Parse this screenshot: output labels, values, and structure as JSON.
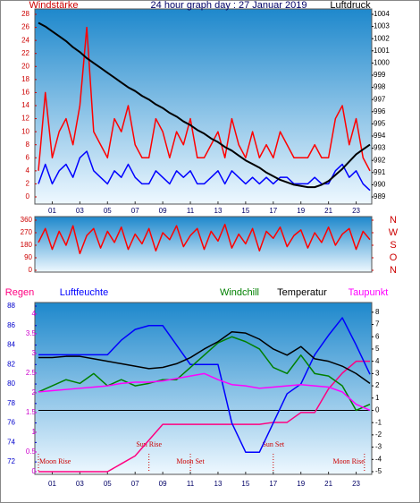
{
  "chart_data": [
    {
      "type": "line",
      "title": "24 hour graph day : 27 Januar 2019",
      "ylabel": "Windstärke",
      "y2label": "Luftdruck",
      "xlim": [
        0,
        24
      ],
      "xticks": [
        {
          "value": 1,
          "label": "01"
        },
        {
          "value": 3,
          "label": "03"
        },
        {
          "value": 5,
          "label": "05"
        },
        {
          "value": 7,
          "label": "07"
        },
        {
          "value": 9,
          "label": "09"
        },
        {
          "value": 11,
          "label": "11"
        },
        {
          "value": 13,
          "label": "13"
        },
        {
          "value": 15,
          "label": "15"
        },
        {
          "value": 17,
          "label": "17"
        },
        {
          "value": 19,
          "label": "19"
        },
        {
          "value": 21,
          "label": "21"
        },
        {
          "value": 23,
          "label": "23"
        }
      ],
      "ylim": [
        0,
        28
      ],
      "yticks": [
        0,
        2,
        4,
        6,
        8,
        10,
        12,
        14,
        16,
        18,
        20,
        22,
        24,
        26,
        28
      ],
      "y2lim": [
        989,
        1004
      ],
      "y2ticks": [
        989,
        990,
        991,
        992,
        993,
        994,
        995,
        996,
        997,
        998,
        999,
        1000,
        1001,
        1002,
        1003,
        1004
      ],
      "x": [
        0,
        0.5,
        1,
        1.5,
        2,
        2.5,
        3,
        3.5,
        4,
        4.5,
        5,
        5.5,
        6,
        6.5,
        7,
        7.5,
        8,
        8.5,
        9,
        9.5,
        10,
        10.5,
        11,
        11.5,
        12,
        12.5,
        13,
        13.5,
        14,
        14.5,
        15,
        15.5,
        16,
        16.5,
        17,
        17.5,
        18,
        18.5,
        19,
        19.5,
        20,
        20.5,
        21,
        21.5,
        22,
        22.5,
        23,
        23.5,
        24
      ],
      "series": [
        {
          "color": "#ff0000",
          "axis": "y",
          "values": [
            4,
            16,
            6,
            10,
            12,
            8,
            14,
            26,
            10,
            8,
            6,
            12,
            10,
            14,
            8,
            6,
            6,
            12,
            10,
            6,
            10,
            8,
            12,
            6,
            6,
            8,
            10,
            6,
            12,
            8,
            6,
            10,
            6,
            8,
            6,
            10,
            8,
            6,
            6,
            6,
            8,
            6,
            6,
            12,
            14,
            8,
            12,
            6,
            4
          ]
        },
        {
          "color": "#0000ff",
          "axis": "y",
          "values": [
            2,
            5,
            2,
            4,
            5,
            3,
            6,
            7,
            4,
            3,
            2,
            4,
            3,
            5,
            3,
            2,
            2,
            4,
            3,
            2,
            4,
            3,
            4,
            2,
            2,
            3,
            4,
            2,
            4,
            3,
            2,
            3,
            2,
            3,
            2,
            3,
            3,
            2,
            2,
            2,
            3,
            2,
            2,
            4,
            5,
            3,
            4,
            2,
            1
          ]
        },
        {
          "color": "#000000",
          "axis": "y2",
          "values": [
            1003.3,
            1003,
            1002.6,
            1002.2,
            1001.8,
            1001.3,
            1000.9,
            1000.4,
            1000,
            999.6,
            999.2,
            998.8,
            998.4,
            998,
            997.7,
            997.3,
            997,
            996.6,
            996.3,
            995.9,
            995.6,
            995.2,
            994.9,
            994.5,
            994.2,
            993.8,
            993.5,
            993.1,
            992.8,
            992.4,
            992,
            991.7,
            991.4,
            991,
            990.7,
            990.4,
            990.2,
            990,
            989.9,
            989.8,
            989.8,
            990,
            990.3,
            990.8,
            991.3,
            991.9,
            992.5,
            992.9,
            993.3
          ]
        }
      ]
    },
    {
      "type": "line",
      "xlim": [
        0,
        24
      ],
      "ylim": [
        0,
        360
      ],
      "yticks": [
        0,
        90,
        180,
        270,
        360
      ],
      "y2lim": [
        0,
        360
      ],
      "y2ticks": [
        {
          "value": 360,
          "label": "N"
        },
        {
          "value": 270,
          "label": "W"
        },
        {
          "value": 180,
          "label": "S"
        },
        {
          "value": 90,
          "label": "O"
        },
        {
          "value": 0,
          "label": "N"
        }
      ],
      "x": [
        0,
        0.5,
        1,
        1.5,
        2,
        2.5,
        3,
        3.5,
        4,
        4.5,
        5,
        5.5,
        6,
        6.5,
        7,
        7.5,
        8,
        8.5,
        9,
        9.5,
        10,
        10.5,
        11,
        11.5,
        12,
        12.5,
        13,
        13.5,
        14,
        14.5,
        15,
        15.5,
        16,
        16.5,
        17,
        17.5,
        18,
        18.5,
        19,
        19.5,
        20,
        20.5,
        21,
        21.5,
        22,
        22.5,
        23,
        23.5,
        24
      ],
      "series": [
        {
          "color": "#ff0000",
          "axis": "y",
          "values": [
            200,
            300,
            150,
            280,
            180,
            320,
            120,
            250,
            300,
            160,
            280,
            200,
            310,
            150,
            260,
            190,
            300,
            140,
            270,
            220,
            320,
            170,
            250,
            300,
            150,
            280,
            210,
            330,
            160,
            260,
            190,
            300,
            140,
            280,
            230,
            310,
            170,
            250,
            290,
            160,
            270,
            200,
            310,
            180,
            260,
            300,
            150,
            280,
            220
          ]
        }
      ]
    },
    {
      "type": "line",
      "xlim": [
        0,
        24
      ],
      "xticks": [
        {
          "value": 1,
          "label": "01"
        },
        {
          "value": 3,
          "label": "03"
        },
        {
          "value": 5,
          "label": "05"
        },
        {
          "value": 7,
          "label": "07"
        },
        {
          "value": 9,
          "label": "09"
        },
        {
          "value": 11,
          "label": "11"
        },
        {
          "value": 13,
          "label": "13"
        },
        {
          "value": 15,
          "label": "15"
        },
        {
          "value": 17,
          "label": "17"
        },
        {
          "value": 19,
          "label": "19"
        },
        {
          "value": 21,
          "label": "21"
        },
        {
          "value": 23,
          "label": "23"
        }
      ],
      "ylim": [
        0,
        4.2
      ],
      "yticks": [
        0,
        0.5,
        1,
        1.5,
        2,
        2.5,
        3,
        3.5,
        4
      ],
      "y3lim": [
        71,
        88
      ],
      "y3ticks": [
        72,
        74,
        76,
        78,
        80,
        82,
        84,
        86,
        88
      ],
      "y2lim": [
        -5,
        8.5
      ],
      "y2ticks": [
        -5,
        -4,
        -3,
        -2,
        -1,
        0,
        1,
        2,
        3,
        4,
        5,
        6,
        7,
        8
      ],
      "x": [
        0,
        1,
        2,
        3,
        4,
        5,
        6,
        7,
        8,
        9,
        10,
        11,
        12,
        13,
        14,
        15,
        16,
        17,
        18,
        19,
        20,
        21,
        22,
        23,
        24
      ],
      "series": [
        {
          "name": "Regen",
          "color": "#ff0080",
          "axis": "y",
          "values": [
            0,
            0,
            0,
            0,
            0,
            0,
            0.2,
            0.4,
            0.8,
            1.2,
            1.2,
            1.2,
            1.2,
            1.2,
            1.2,
            1.2,
            1.2,
            1.25,
            1.25,
            1.5,
            1.5,
            2.1,
            2.5,
            2.8,
            2.8
          ]
        },
        {
          "name": "Luftfeuchte",
          "color": "#0000ff",
          "axis": "y3",
          "values": [
            83,
            83,
            83,
            83,
            83,
            83,
            84.5,
            85.6,
            86,
            86,
            84,
            82,
            82,
            82,
            76,
            73,
            73,
            76,
            79,
            80,
            83,
            85,
            86.8,
            84,
            81
          ]
        },
        {
          "name": "Windchill",
          "color": "#008000",
          "axis": "y2",
          "values": [
            1.5,
            2,
            2.5,
            2.2,
            3,
            2,
            2.5,
            2,
            2.2,
            2.5,
            2.5,
            3.5,
            4.5,
            5.5,
            6,
            5.6,
            5,
            3.5,
            3,
            4.5,
            3,
            2.8,
            2,
            0,
            0.5
          ]
        },
        {
          "name": "Temperatur",
          "color": "#000000",
          "axis": "y2",
          "values": [
            4.3,
            4.3,
            4.4,
            4.4,
            4.2,
            4,
            3.8,
            3.6,
            3.4,
            3.5,
            3.8,
            4.3,
            5,
            5.6,
            6.4,
            6.3,
            5.8,
            5,
            4.5,
            5.2,
            4.2,
            4,
            3.6,
            3,
            2.2
          ]
        },
        {
          "name": "Taupunkt",
          "color": "#ff00ff",
          "axis": "y2",
          "values": [
            1.5,
            1.6,
            1.7,
            1.8,
            1.9,
            2,
            2.2,
            2.3,
            2.3,
            2.4,
            2.6,
            2.8,
            3,
            2.5,
            2.1,
            2,
            1.8,
            1.9,
            2,
            2.1,
            2,
            1.9,
            1.5,
            0.5,
            0
          ]
        }
      ],
      "annotations": [
        {
          "text": "Moon Rise",
          "x": 0,
          "color": "#cc0000"
        },
        {
          "text": "Sun Rise",
          "x": 8,
          "color": "#cc0000"
        },
        {
          "text": "Moon Set",
          "x": 11,
          "color": "#cc0000"
        },
        {
          "text": "Sun Set",
          "x": 17,
          "color": "#cc0000"
        },
        {
          "text": "Moon Rise",
          "x": 23.6,
          "color": "#cc0000"
        }
      ]
    }
  ]
}
